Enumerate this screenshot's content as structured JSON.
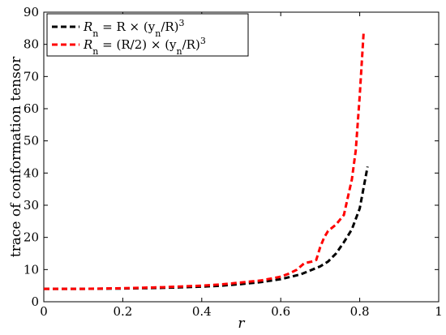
{
  "chart_data": {
    "type": "line",
    "title": "",
    "xlabel": "r",
    "ylabel": "trace of conformation tensor",
    "xlim": [
      0,
      1
    ],
    "ylim": [
      0,
      90
    ],
    "xticks": [
      0,
      0.2,
      0.4,
      0.6,
      0.8,
      1
    ],
    "xtick_labels": [
      "0",
      "0.2",
      "0.4",
      "0.6",
      "0.8",
      "1"
    ],
    "yticks": [
      0,
      10,
      20,
      30,
      40,
      50,
      60,
      70,
      80,
      90
    ],
    "ytick_labels": [
      "0",
      "10",
      "20",
      "30",
      "40",
      "50",
      "60",
      "70",
      "80",
      "90"
    ],
    "grid": false,
    "legend_position": "top-left",
    "series": [
      {
        "name": "R_n = R × (y_n/R)^3",
        "legend_main": "R",
        "legend_sub": "n",
        "legend_rest": " = R × (y",
        "legend_sub2": "n",
        "legend_rest2": "/R)",
        "legend_sup": "3",
        "color": "#000000",
        "style": "dashed",
        "x": [
          0,
          0.1,
          0.2,
          0.3,
          0.4,
          0.45,
          0.5,
          0.55,
          0.6,
          0.65,
          0.7,
          0.72,
          0.74,
          0.76,
          0.78,
          0.8,
          0.82
        ],
        "y": [
          4,
          4,
          4.1,
          4.3,
          4.7,
          5.0,
          5.5,
          6.1,
          7.0,
          8.5,
          11.0,
          12.5,
          15.0,
          18.5,
          22.5,
          29.0,
          42.0
        ]
      },
      {
        "name": "R_n = (R/2) × (y_n/R)^3",
        "legend_main": "R",
        "legend_sub": "n",
        "legend_rest": " = (R/2) × (y",
        "legend_sub2": "n",
        "legend_rest2": "/R)",
        "legend_sup": "3",
        "color": "#ff0000",
        "style": "dashed",
        "x": [
          0,
          0.1,
          0.2,
          0.3,
          0.4,
          0.45,
          0.5,
          0.55,
          0.6,
          0.62,
          0.64,
          0.66,
          0.68,
          0.69,
          0.7,
          0.71,
          0.72,
          0.74,
          0.76,
          0.78,
          0.79,
          0.8,
          0.81
        ],
        "y": [
          4,
          4,
          4.2,
          4.5,
          5.0,
          5.4,
          6.0,
          6.6,
          7.8,
          8.7,
          9.9,
          12.0,
          12.5,
          13.0,
          17.0,
          20.0,
          22.0,
          24.0,
          27.0,
          38.0,
          47.0,
          64.0,
          84.0
        ]
      }
    ]
  }
}
